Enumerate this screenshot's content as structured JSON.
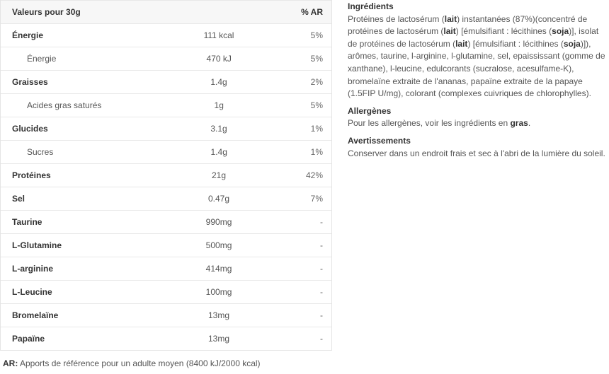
{
  "table": {
    "header": {
      "name": "Valeurs pour 30g",
      "value": "",
      "ar": "% AR"
    },
    "rows": [
      {
        "name": "Énergie",
        "value": "111 kcal",
        "ar": "5%",
        "sub": false
      },
      {
        "name": "Énergie",
        "value": "470 kJ",
        "ar": "5%",
        "sub": true
      },
      {
        "name": "Graisses",
        "value": "1.4g",
        "ar": "2%",
        "sub": false
      },
      {
        "name": "Acides gras saturés",
        "value": "1g",
        "ar": "5%",
        "sub": true
      },
      {
        "name": "Glucides",
        "value": "3.1g",
        "ar": "1%",
        "sub": false
      },
      {
        "name": "Sucres",
        "value": "1.4g",
        "ar": "1%",
        "sub": true
      },
      {
        "name": "Protéines",
        "value": "21g",
        "ar": "42%",
        "sub": false
      },
      {
        "name": "Sel",
        "value": "0.47g",
        "ar": "7%",
        "sub": false
      },
      {
        "name": "Taurine",
        "value": "990mg",
        "ar": "-",
        "sub": false
      },
      {
        "name": "L-Glutamine",
        "value": "500mg",
        "ar": "-",
        "sub": false
      },
      {
        "name": "L-arginine",
        "value": "414mg",
        "ar": "-",
        "sub": false
      },
      {
        "name": "L-Leucine",
        "value": "100mg",
        "ar": "-",
        "sub": false
      },
      {
        "name": "Bromelaïne",
        "value": "13mg",
        "ar": "-",
        "sub": false
      },
      {
        "name": "Papaïne",
        "value": "13mg",
        "ar": "-",
        "sub": false
      }
    ]
  },
  "footnote": {
    "label": "AR:",
    "text": " Apports de référence pour un adulte moyen (8400 kJ/2000 kcal)"
  },
  "ingredients": {
    "title": "Ingrédients",
    "segments": [
      {
        "text": "Protéines de lactosérum (",
        "bold": false
      },
      {
        "text": "lait",
        "bold": true
      },
      {
        "text": ") instantanées (87%)(concentré de protéines de lactosérum (",
        "bold": false
      },
      {
        "text": "lait",
        "bold": true
      },
      {
        "text": ") [émulsifiant : lécithines (",
        "bold": false
      },
      {
        "text": "soja",
        "bold": true
      },
      {
        "text": ")], isolat de protéines de lactosérum (",
        "bold": false
      },
      {
        "text": "lait",
        "bold": true
      },
      {
        "text": ") [émulsifiant : lécithines (",
        "bold": false
      },
      {
        "text": "soja",
        "bold": true
      },
      {
        "text": ")]), arômes, taurine, l-arginine, l-glutamine, sel, epaississant (gomme de xanthane), l-leucine, edulcorants (sucralose, acesulfame-K), bromelaïne extraite de l'ananas, papaïne extraite de la papaye (1.5FIP U/mg), colorant (complexes cuivriques de chlorophylles).",
        "bold": false
      }
    ]
  },
  "allergens": {
    "title": "Allergènes",
    "text": "Pour les allergènes, voir les ingrédients en ",
    "bold": "gras",
    "end": "."
  },
  "warnings": {
    "title": "Avertissements",
    "text": "Conserver dans un endroit frais et sec à l'abri de la lumière du soleil."
  }
}
